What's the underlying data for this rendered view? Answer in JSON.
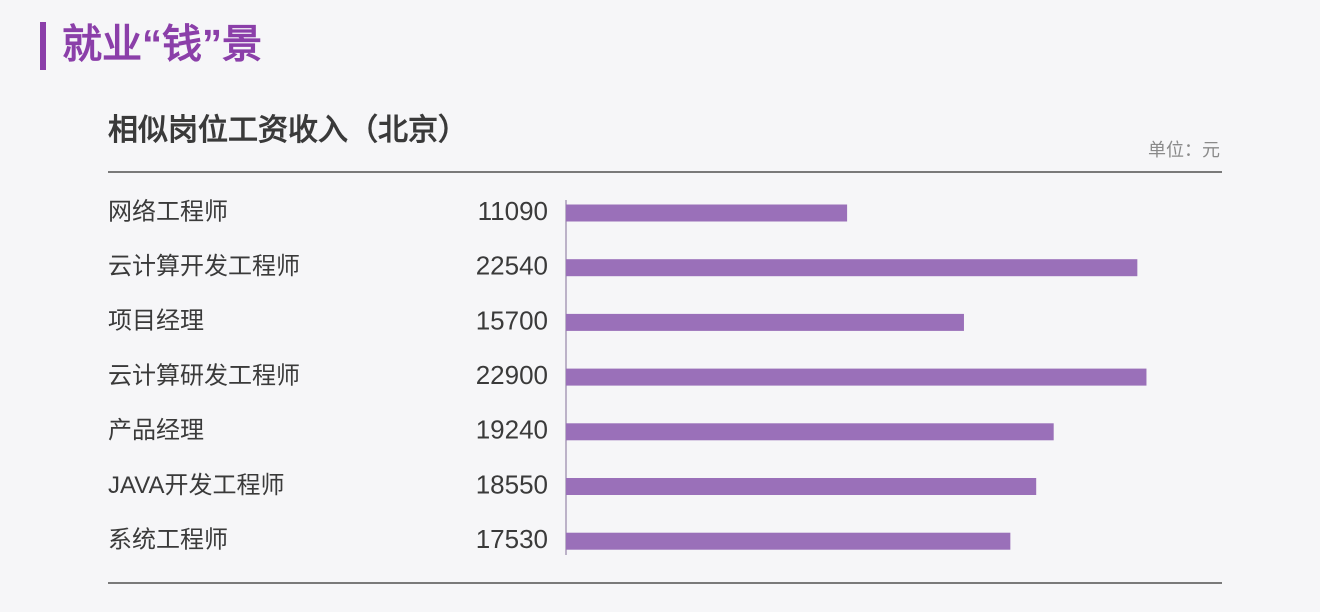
{
  "chart_data": {
    "type": "bar",
    "orientation": "horizontal",
    "title": "就业“钱”景",
    "subtitle": "相似岗位工资收入（北京）",
    "unit_label": "单位：元",
    "categories": [
      "网络工程师",
      "云计算开发工程师",
      "项目经理",
      "云计算研发工程师",
      "产品经理",
      "JAVA开发工程师",
      "系统工程师"
    ],
    "values": [
      11090,
      22540,
      15700,
      22900,
      19240,
      18550,
      17530
    ],
    "color": "#9a70b9",
    "xlim": [
      0,
      23000
    ]
  }
}
